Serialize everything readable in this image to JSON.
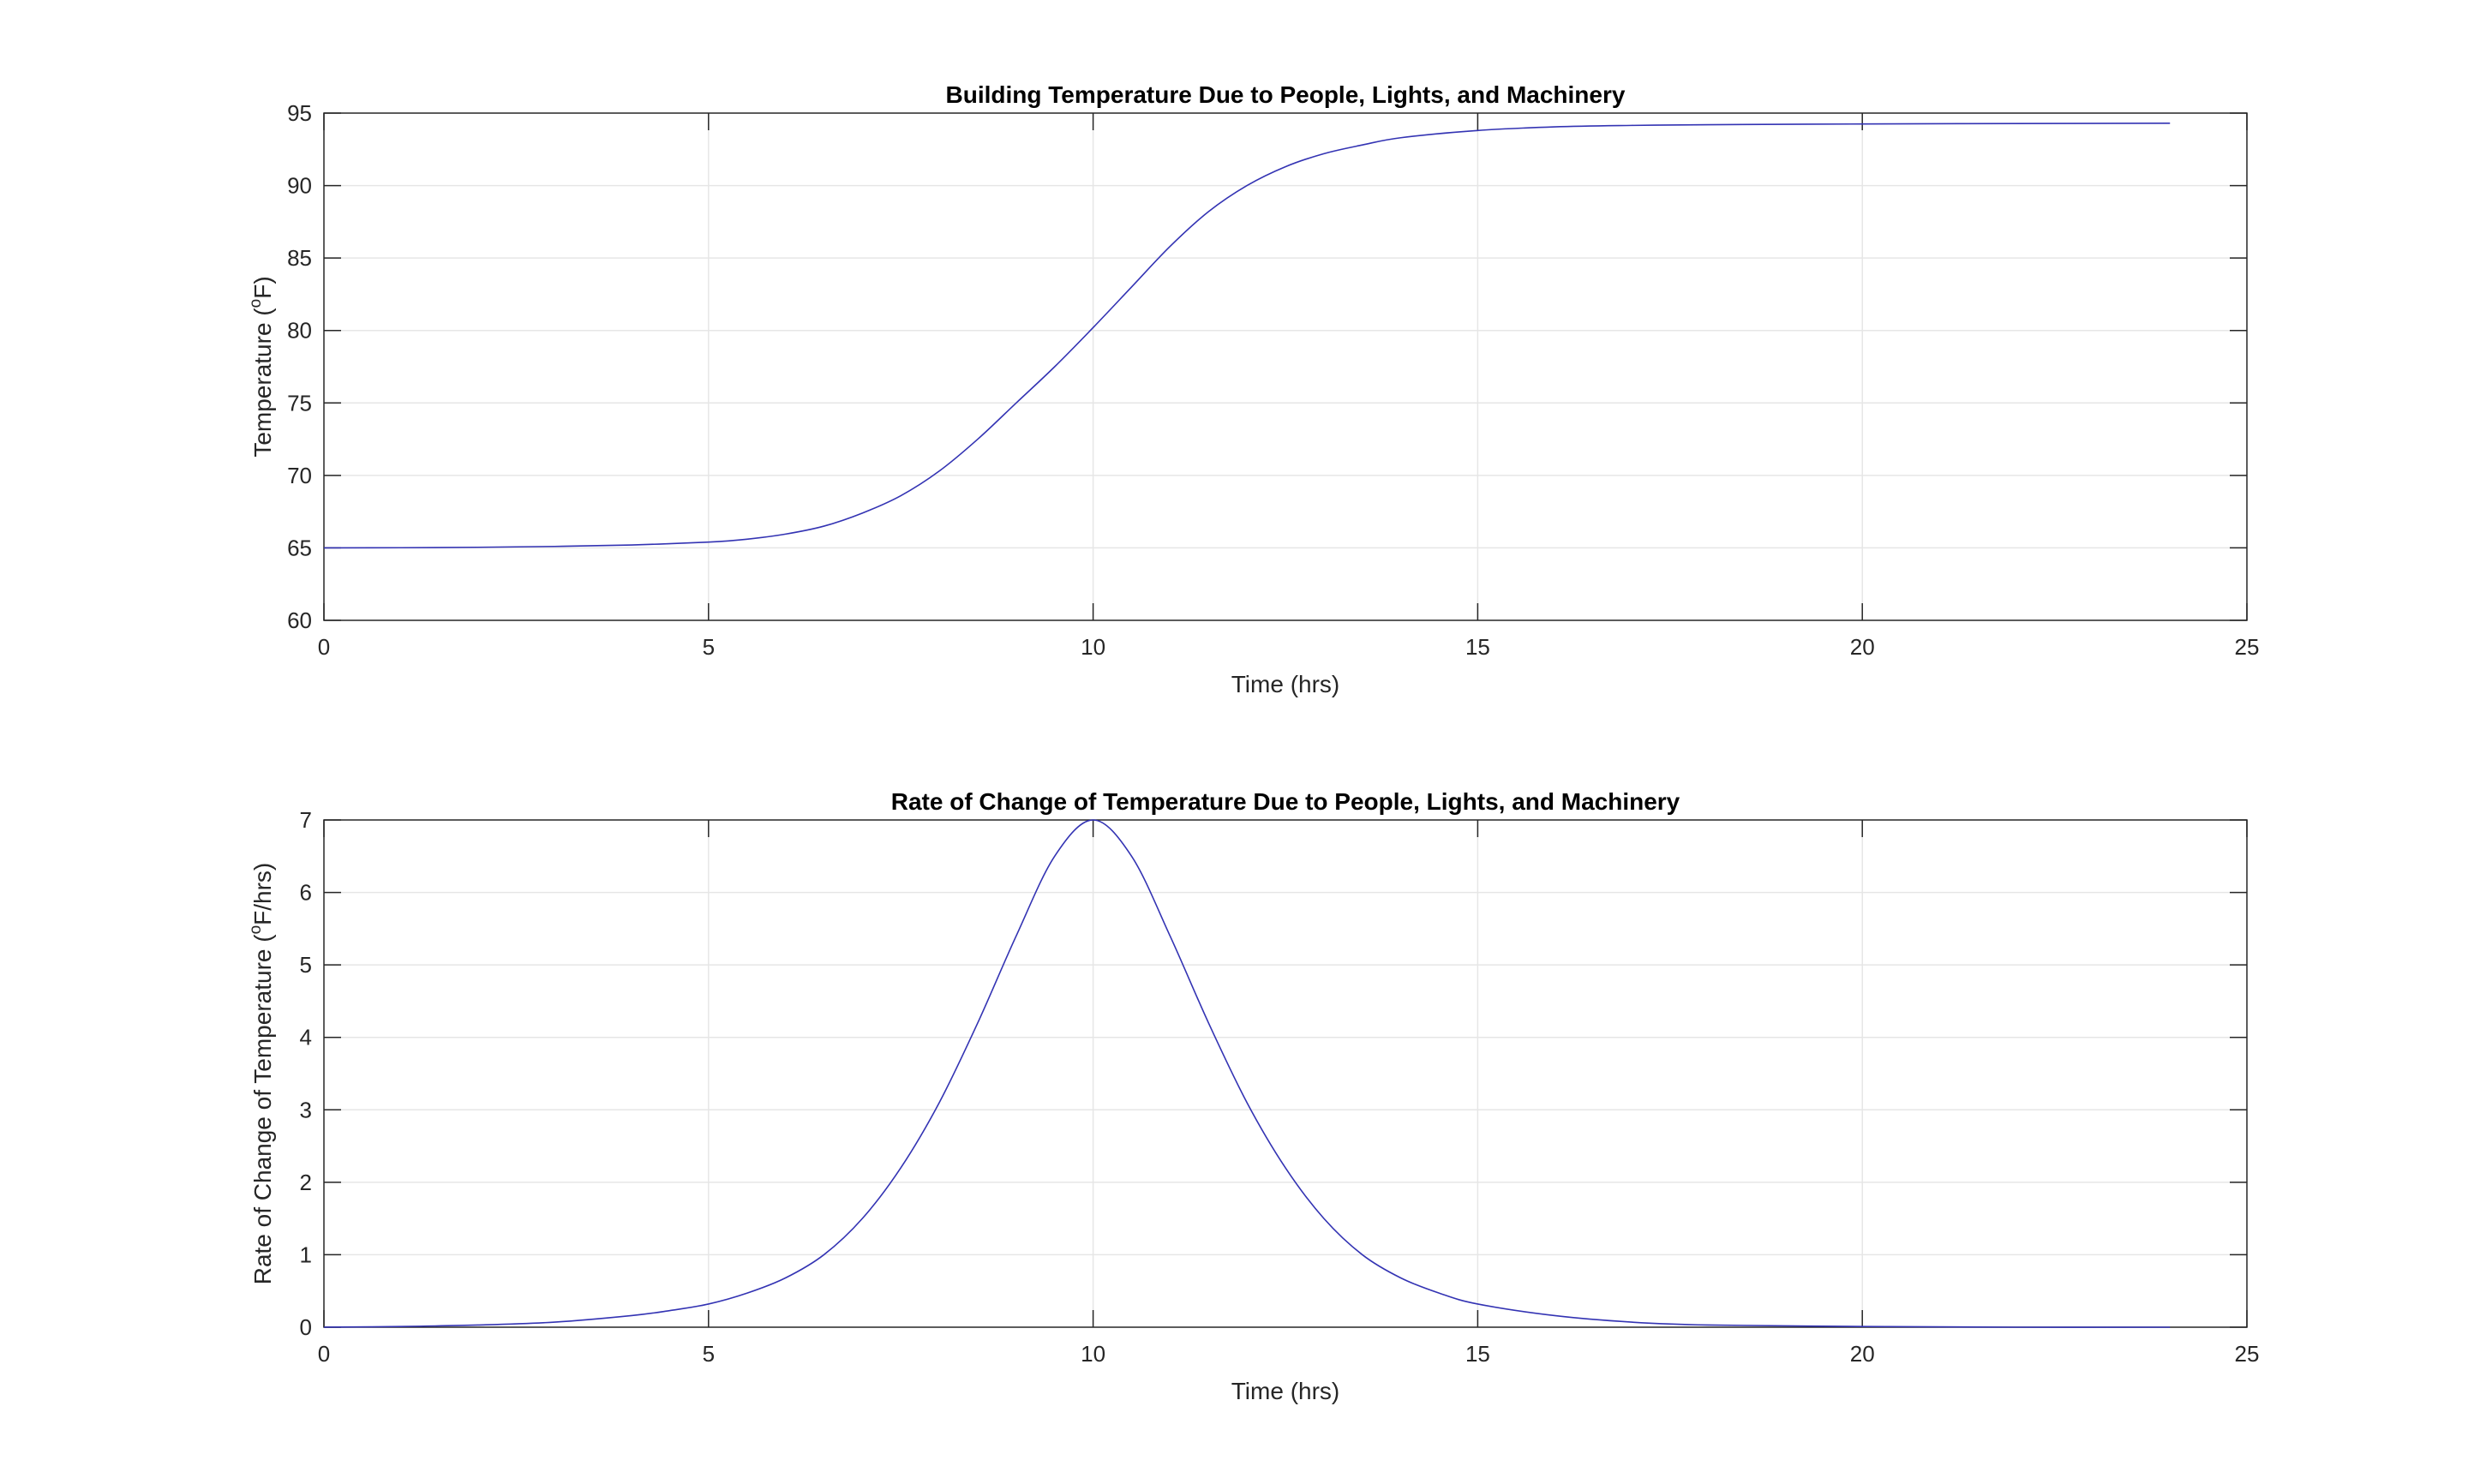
{
  "chart_data": [
    {
      "type": "line",
      "title": "Building Temperature Due to People, Lights, and Machinery",
      "xlabel": "Time (hrs)",
      "ylabel": {
        "prefix": "Temperature (",
        "sup": "o",
        "suffix": "F)"
      },
      "xlim": [
        0,
        25
      ],
      "ylim": [
        60,
        95
      ],
      "xticks": [
        0,
        5,
        10,
        15,
        20,
        25
      ],
      "yticks": [
        60,
        65,
        70,
        75,
        80,
        85,
        90,
        95
      ],
      "grid": true,
      "color": "#3333b3",
      "series": [
        {
          "x": [
            0,
            1,
            2,
            3,
            4,
            5,
            5.5,
            6,
            6.5,
            7,
            7.5,
            8,
            8.5,
            9,
            9.5,
            10,
            10.5,
            11,
            11.5,
            12,
            12.5,
            13,
            13.5,
            14,
            15,
            16,
            17,
            18,
            20,
            22,
            24
          ],
          "y": [
            65.0,
            65.01,
            65.04,
            65.1,
            65.2,
            65.4,
            65.6,
            65.95,
            66.5,
            67.4,
            68.6,
            70.3,
            72.5,
            75.0,
            77.5,
            80.2,
            83.0,
            85.8,
            88.2,
            90.0,
            91.3,
            92.2,
            92.8,
            93.3,
            93.8,
            94.05,
            94.15,
            94.2,
            94.25,
            94.28,
            94.3
          ]
        }
      ]
    },
    {
      "type": "line",
      "title": "Rate of Change of Temperature Due to People, Lights, and Machinery",
      "xlabel": "Time (hrs)",
      "ylabel": {
        "prefix": "Rate of Change of Temperature (",
        "sup": "o",
        "suffix": "F/hrs)"
      },
      "xlim": [
        0,
        25
      ],
      "ylim": [
        0,
        7
      ],
      "xticks": [
        0,
        5,
        10,
        15,
        20,
        25
      ],
      "yticks": [
        0,
        1,
        2,
        3,
        4,
        5,
        6,
        7
      ],
      "grid": true,
      "color": "#3333b3",
      "series": [
        {
          "x": [
            0,
            1,
            2,
            3,
            4,
            4.5,
            5,
            5.5,
            6,
            6.5,
            7,
            7.5,
            8,
            8.5,
            9,
            9.5,
            10,
            10.5,
            11,
            11.5,
            12,
            12.5,
            13,
            13.5,
            14,
            14.5,
            15,
            16,
            17,
            18,
            20,
            22,
            24
          ],
          "y": [
            0.0,
            0.01,
            0.03,
            0.07,
            0.16,
            0.23,
            0.32,
            0.47,
            0.68,
            1.0,
            1.5,
            2.2,
            3.1,
            4.2,
            5.4,
            6.5,
            7.0,
            6.5,
            5.4,
            4.2,
            3.1,
            2.2,
            1.5,
            1.0,
            0.68,
            0.47,
            0.32,
            0.16,
            0.07,
            0.03,
            0.01,
            0.0,
            0.0
          ]
        }
      ]
    }
  ]
}
